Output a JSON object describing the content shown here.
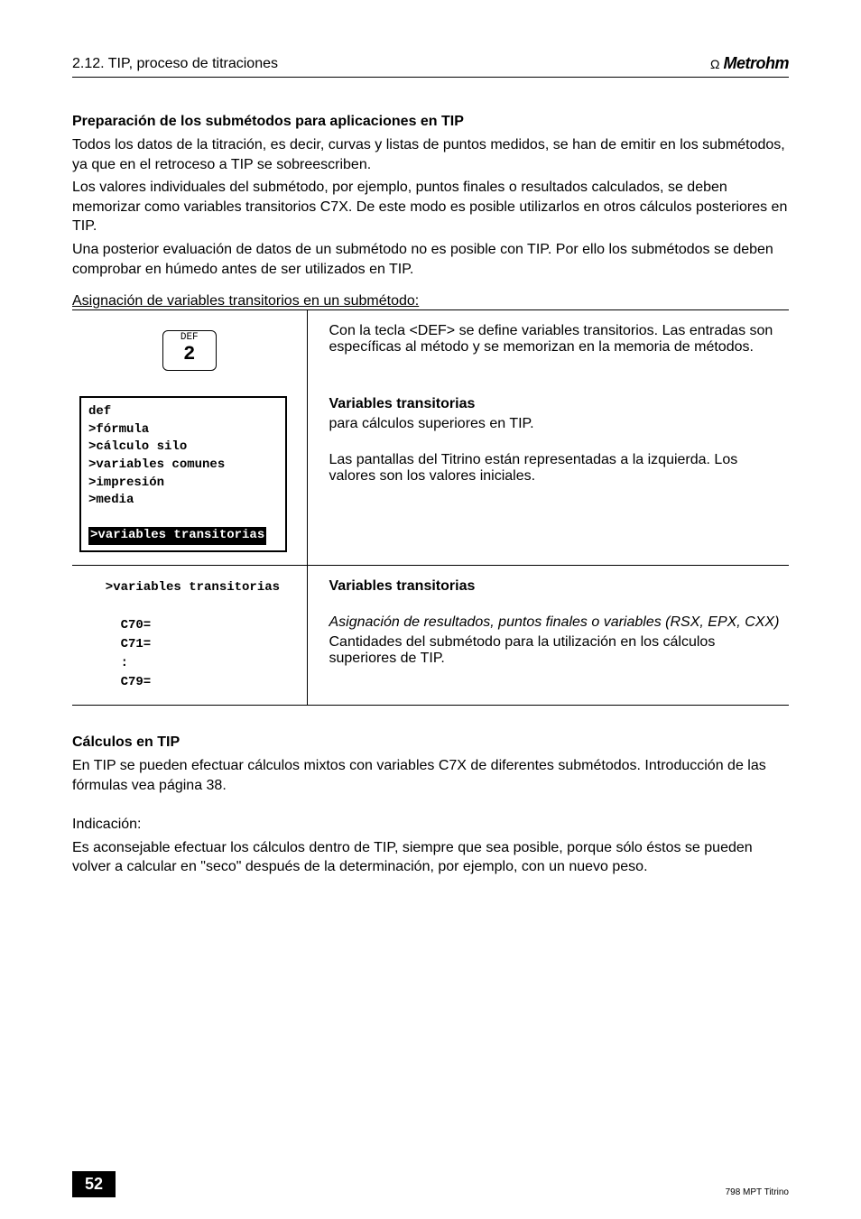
{
  "header": {
    "section": "2.12. TIP, proceso de titraciones",
    "logo_text": "Metrohm"
  },
  "sec1": {
    "title": "Preparación de los submétodos para aplicaciones en TIP",
    "p1": "Todos los datos de la titración, es decir, curvas y listas de puntos medidos, se han de emitir en los submétodos, ya que en el retroceso a TIP se sobreescriben.",
    "p2": "Los valores individuales del submétodo, por ejemplo, puntos finales o resultados calculados, se deben memorizar como variables transitorios C7X. De este modo es posible utilizarlos en otros cálculos posteriores en TIP.",
    "p3": "Una posterior evaluación de datos de un submétodo no es posible con TIP. Por ello los submétodos se deben comprobar en húmedo antes de ser utilizados en TIP.",
    "underline": "Asignación de variables transitorios en un submétodo:"
  },
  "defkey": {
    "label": "DEF",
    "num": "2"
  },
  "row1_desc": "Con la tecla <DEF> se define variables transitorios. Las entradas son específicas al método y se memorizan en la memoria de métodos.",
  "codebox": {
    "l1": "def",
    "l2": "  >fórmula",
    "l3": "  >cálculo silo",
    "l4": "  >variables comunes",
    "l5": "  >impresión",
    "l6": "  >media",
    "hi": ">variables transitorias"
  },
  "row2_desc": {
    "title": "Variables transitorias",
    "p1": "para cálculos superiores en TIP.",
    "p2": "Las pantallas del Titrino están representadas a la izquierda. Los valores son los valores iniciales."
  },
  "row3_left": {
    "h": "  >variables transitorias",
    "l1": "    C70=",
    "l2": "    C71=",
    "l3": "    :",
    "l4": "    C79="
  },
  "row3_desc": {
    "title": "Variables transitorias",
    "it": "Asignación de resultados, puntos finales o variables (RSX, EPX, CXX)",
    "p": "Cantidades del submétodo para la utilización en los cálculos superiores de TIP."
  },
  "sec2": {
    "title": "Cálculos en TIP",
    "p1": "En TIP se pueden efectuar cálculos mixtos con variables C7X de diferentes submétodos. Introducción de las fórmulas vea página 38.",
    "p2": "Indicación:",
    "p3": "Es aconsejable efectuar los cálculos dentro de TIP, siempre que sea posible, porque sólo éstos se pueden volver a calcular en \"seco\" después de la determinación, por ejemplo, con un nuevo peso."
  },
  "footer": {
    "page": "52",
    "doc": "798 MPT Titrino"
  }
}
